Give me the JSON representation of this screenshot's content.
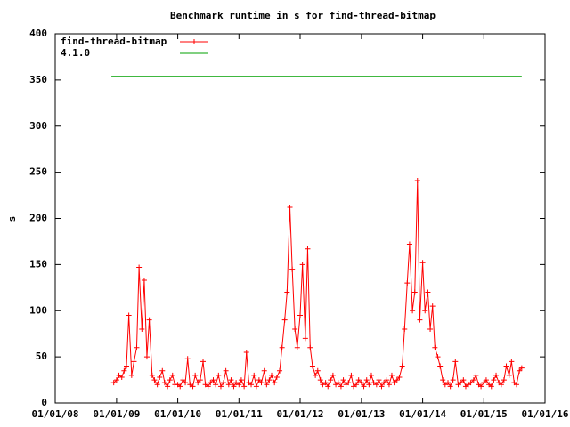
{
  "chart_data": {
    "type": "line",
    "title": "Benchmark runtime in s for find-thread-bitmap",
    "ylabel": "s",
    "xlim": [
      "2008-01-01",
      "2016-01-01"
    ],
    "ylim": [
      0,
      400
    ],
    "yticks": [
      0,
      50,
      100,
      150,
      200,
      250,
      300,
      350,
      400
    ],
    "xticks": [
      {
        "value": "2008-01-01",
        "label": "01/01/08"
      },
      {
        "value": "2009-01-01",
        "label": "01/01/09"
      },
      {
        "value": "2010-01-01",
        "label": "01/01/10"
      },
      {
        "value": "2011-01-01",
        "label": "01/01/11"
      },
      {
        "value": "2012-01-01",
        "label": "01/01/12"
      },
      {
        "value": "2013-01-01",
        "label": "01/01/13"
      },
      {
        "value": "2014-01-01",
        "label": "01/01/14"
      },
      {
        "value": "2015-01-01",
        "label": "01/01/15"
      },
      {
        "value": "2016-01-01",
        "label": "01/01/16"
      }
    ],
    "legend": "top-left",
    "series": [
      {
        "name": "find-thread-bitmap",
        "color": "#ff0000",
        "markers": true,
        "x": [
          "2008-12-15",
          "2009-01-01",
          "2009-01-15",
          "2009-02-01",
          "2009-02-15",
          "2009-03-01",
          "2009-03-15",
          "2009-04-01",
          "2009-04-15",
          "2009-05-01",
          "2009-05-15",
          "2009-06-01",
          "2009-06-15",
          "2009-07-01",
          "2009-07-15",
          "2009-08-01",
          "2009-08-15",
          "2009-09-01",
          "2009-09-15",
          "2009-10-01",
          "2009-10-15",
          "2009-11-01",
          "2009-11-15",
          "2009-12-01",
          "2009-12-15",
          "2010-01-01",
          "2010-01-15",
          "2010-02-01",
          "2010-02-15",
          "2010-03-01",
          "2010-03-15",
          "2010-04-01",
          "2010-04-15",
          "2010-05-01",
          "2010-05-15",
          "2010-06-01",
          "2010-06-15",
          "2010-07-01",
          "2010-07-15",
          "2010-08-01",
          "2010-08-15",
          "2010-09-01",
          "2010-09-15",
          "2010-10-01",
          "2010-10-15",
          "2010-11-01",
          "2010-11-15",
          "2010-12-01",
          "2010-12-15",
          "2011-01-01",
          "2011-01-15",
          "2011-02-01",
          "2011-02-15",
          "2011-03-01",
          "2011-03-15",
          "2011-04-01",
          "2011-04-15",
          "2011-05-01",
          "2011-05-15",
          "2011-06-01",
          "2011-06-15",
          "2011-07-01",
          "2011-07-15",
          "2011-08-01",
          "2011-08-15",
          "2011-09-01",
          "2011-09-15",
          "2011-10-01",
          "2011-10-15",
          "2011-11-01",
          "2011-11-15",
          "2011-12-01",
          "2011-12-15",
          "2012-01-01",
          "2012-01-15",
          "2012-02-01",
          "2012-02-15",
          "2012-03-01",
          "2012-03-15",
          "2012-04-01",
          "2012-04-15",
          "2012-05-01",
          "2012-05-15",
          "2012-06-01",
          "2012-06-15",
          "2012-07-01",
          "2012-07-15",
          "2012-08-01",
          "2012-08-15",
          "2012-09-01",
          "2012-09-15",
          "2012-10-01",
          "2012-10-15",
          "2012-11-01",
          "2012-11-15",
          "2012-12-01",
          "2012-12-15",
          "2013-01-01",
          "2013-01-15",
          "2013-02-01",
          "2013-02-15",
          "2013-03-01",
          "2013-03-15",
          "2013-04-01",
          "2013-04-15",
          "2013-05-01",
          "2013-05-15",
          "2013-06-01",
          "2013-06-15",
          "2013-07-01",
          "2013-07-15",
          "2013-08-01",
          "2013-08-15",
          "2013-09-01",
          "2013-09-15",
          "2013-10-01",
          "2013-10-15",
          "2013-11-01",
          "2013-11-15",
          "2013-12-01",
          "2013-12-15",
          "2014-01-01",
          "2014-01-15",
          "2014-02-01",
          "2014-02-15",
          "2014-03-01",
          "2014-03-15",
          "2014-04-01",
          "2014-04-15",
          "2014-05-01",
          "2014-05-15",
          "2014-06-01",
          "2014-06-15",
          "2014-07-01",
          "2014-07-15",
          "2014-08-01",
          "2014-08-15",
          "2014-09-01",
          "2014-09-15",
          "2014-10-01",
          "2014-10-15",
          "2014-11-01",
          "2014-11-15",
          "2014-12-01",
          "2014-12-15",
          "2015-01-01",
          "2015-01-15",
          "2015-02-01",
          "2015-02-15",
          "2015-03-01",
          "2015-03-15",
          "2015-04-01",
          "2015-04-15",
          "2015-05-01",
          "2015-05-15",
          "2015-06-01",
          "2015-06-15",
          "2015-07-01",
          "2015-07-15",
          "2015-08-01",
          "2015-08-15"
        ],
        "values": [
          22,
          25,
          30,
          28,
          35,
          40,
          95,
          30,
          45,
          60,
          147,
          80,
          133,
          50,
          90,
          30,
          25,
          20,
          28,
          35,
          22,
          18,
          25,
          30,
          20,
          20,
          18,
          25,
          22,
          48,
          20,
          18,
          30,
          22,
          25,
          45,
          20,
          18,
          22,
          25,
          20,
          30,
          18,
          22,
          35,
          20,
          25,
          18,
          22,
          20,
          25,
          18,
          55,
          22,
          20,
          30,
          18,
          25,
          22,
          35,
          20,
          25,
          30,
          22,
          28,
          35,
          60,
          90,
          120,
          212,
          145,
          80,
          60,
          95,
          150,
          70,
          167,
          60,
          40,
          30,
          35,
          25,
          20,
          22,
          18,
          25,
          30,
          20,
          22,
          18,
          25,
          20,
          22,
          30,
          18,
          20,
          25,
          22,
          18,
          25,
          20,
          30,
          22,
          20,
          25,
          18,
          22,
          25,
          20,
          30,
          22,
          25,
          28,
          40,
          80,
          130,
          172,
          100,
          120,
          241,
          90,
          152,
          100,
          120,
          80,
          105,
          60,
          50,
          40,
          25,
          20,
          22,
          18,
          25,
          45,
          20,
          22,
          25,
          18,
          20,
          22,
          25,
          30,
          20,
          18,
          22,
          25,
          20,
          18,
          25,
          30,
          22,
          20,
          25,
          40,
          30,
          45,
          22,
          20,
          35,
          38
        ]
      },
      {
        "name": "4.1.0",
        "color": "#00a000",
        "markers": false,
        "x": [
          "2008-12-01",
          "2015-08-15"
        ],
        "values": [
          354,
          354
        ]
      }
    ]
  }
}
